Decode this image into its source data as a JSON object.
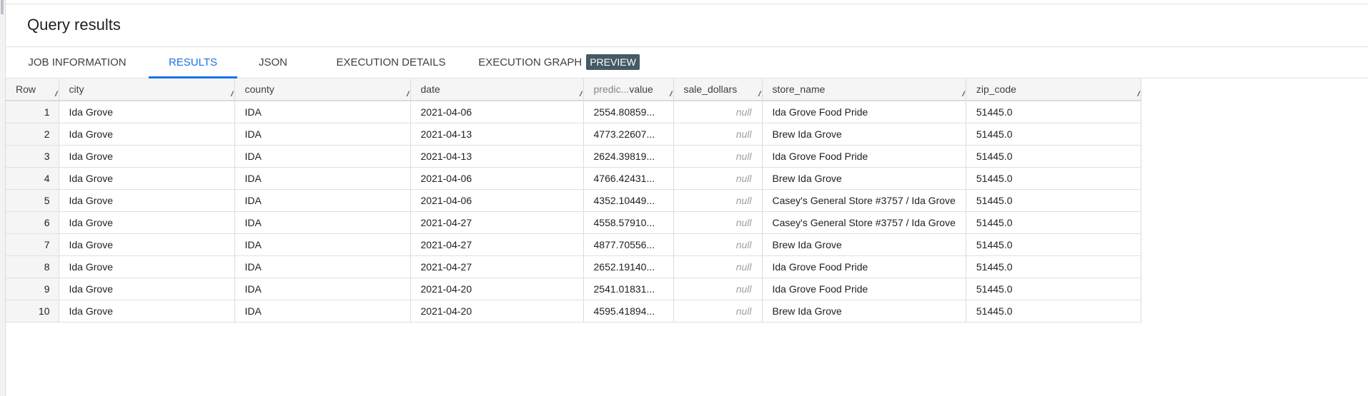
{
  "title": "Query results",
  "tabs": [
    {
      "label": "JOB INFORMATION",
      "active": false
    },
    {
      "label": "RESULTS",
      "active": true
    },
    {
      "label": "JSON",
      "active": false
    },
    {
      "label": "EXECUTION DETAILS",
      "active": false
    },
    {
      "label": "EXECUTION GRAPH",
      "badge": "PREVIEW",
      "active": false
    }
  ],
  "accent_color": "#1a73e8",
  "table": {
    "columns": [
      "Row",
      "city",
      "county",
      "date",
      "predic...value",
      "sale_dollars",
      "store_name",
      "zip_code"
    ],
    "predicted_header": {
      "prefix": "predic...",
      "suffix": "value"
    },
    "rows": [
      [
        "1",
        "Ida Grove",
        "IDA",
        "2021-04-06",
        "2554.80859...",
        "null",
        "Ida Grove Food Pride",
        "51445.0"
      ],
      [
        "2",
        "Ida Grove",
        "IDA",
        "2021-04-13",
        "4773.22607...",
        "null",
        "Brew Ida Grove",
        "51445.0"
      ],
      [
        "3",
        "Ida Grove",
        "IDA",
        "2021-04-13",
        "2624.39819...",
        "null",
        "Ida Grove Food Pride",
        "51445.0"
      ],
      [
        "4",
        "Ida Grove",
        "IDA",
        "2021-04-06",
        "4766.42431...",
        "null",
        "Brew Ida Grove",
        "51445.0"
      ],
      [
        "5",
        "Ida Grove",
        "IDA",
        "2021-04-06",
        "4352.10449...",
        "null",
        "Casey's General Store #3757 / Ida Grove",
        "51445.0"
      ],
      [
        "6",
        "Ida Grove",
        "IDA",
        "2021-04-27",
        "4558.57910...",
        "null",
        "Casey's General Store #3757 / Ida Grove",
        "51445.0"
      ],
      [
        "7",
        "Ida Grove",
        "IDA",
        "2021-04-27",
        "4877.70556...",
        "null",
        "Brew Ida Grove",
        "51445.0"
      ],
      [
        "8",
        "Ida Grove",
        "IDA",
        "2021-04-27",
        "2652.19140...",
        "null",
        "Ida Grove Food Pride",
        "51445.0"
      ],
      [
        "9",
        "Ida Grove",
        "IDA",
        "2021-04-20",
        "2541.01831...",
        "null",
        "Ida Grove Food Pride",
        "51445.0"
      ],
      [
        "10",
        "Ida Grove",
        "IDA",
        "2021-04-20",
        "4595.41894...",
        "null",
        "Brew Ida Grove",
        "51445.0"
      ]
    ]
  }
}
